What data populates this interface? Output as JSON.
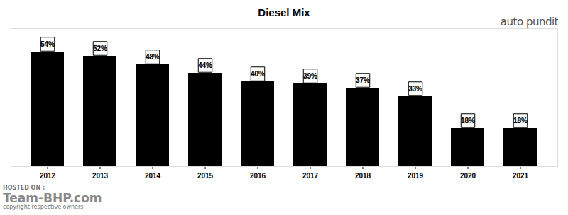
{
  "chart_data": {
    "type": "bar",
    "title": "Diesel Mix",
    "categories": [
      "2012",
      "2013",
      "2014",
      "2015",
      "2016",
      "2017",
      "2018",
      "2019",
      "2020",
      "2021"
    ],
    "values": [
      54,
      52,
      48,
      44,
      40,
      39,
      37,
      33,
      18,
      18
    ],
    "value_labels": [
      "54%",
      "52%",
      "48%",
      "44%",
      "40%",
      "39%",
      "37%",
      "33%",
      "18%",
      "18%"
    ],
    "color": "#000000",
    "ylim": [
      0,
      65
    ],
    "yticks": [],
    "grid": false,
    "data_labels": true,
    "tick_labels": "x",
    "annotations": [
      "auto pundit",
      "HOSTED ON :",
      "Team-BHP.com",
      "copyright respective owners"
    ]
  }
}
